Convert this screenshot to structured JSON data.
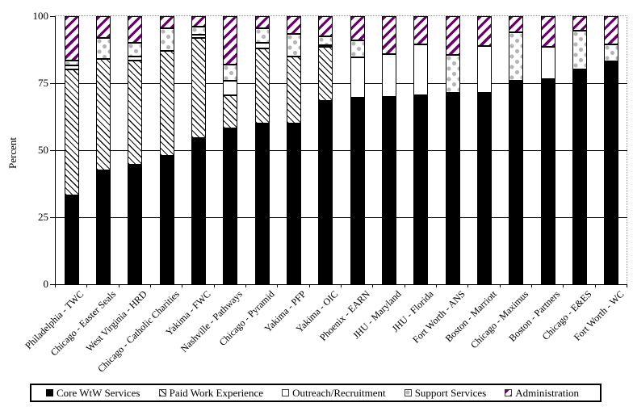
{
  "chart_data": {
    "type": "bar",
    "stacked": true,
    "title": "",
    "xlabel": "",
    "ylabel": "Percent",
    "ylim": [
      0,
      100
    ],
    "yticks": [
      0,
      25,
      50,
      75,
      100
    ],
    "grid": true,
    "legend_position": "bottom",
    "categories": [
      "Philadelphia - TWC",
      "Chicago - Easter Seals",
      "West Virginia - HRD",
      "Chicago - Catholic Charities",
      "Yakima - FWC",
      "Nashville - Pathways",
      "Chicago - Pyramid",
      "Yakima - PFP",
      "Yakima - OIC",
      "Phoenix - EARN",
      "JHU - Maryland",
      "JHU - Florida",
      "Fort Worth - ANS",
      "Boston - Marriott",
      "Chicago - Maximus",
      "Boston - Partners",
      "Chicago - E&ES",
      "Fort Worth - WC"
    ],
    "series": [
      {
        "name": "Core WtW Services",
        "key": "core",
        "pattern": "solid-black",
        "values": [
          33,
          42.5,
          44.5,
          48,
          54.5,
          58,
          60,
          60,
          68.5,
          69.5,
          70,
          70.5,
          71.5,
          71.5,
          76,
          76.5,
          80,
          83
        ]
      },
      {
        "name": "Paid Work Experience",
        "key": "pwe",
        "pattern": "black-diagonal-hatch",
        "values": [
          47,
          41.5,
          39,
          39,
          37.5,
          12.5,
          28,
          25,
          20,
          0,
          0,
          0,
          0,
          0,
          0,
          0,
          0,
          0
        ]
      },
      {
        "name": "Outreach/Recruitment",
        "key": "out",
        "pattern": "plain-white",
        "values": [
          1.5,
          0,
          1.5,
          0,
          1,
          5.5,
          2,
          0,
          0.5,
          15,
          16,
          19,
          0,
          17.5,
          0,
          12,
          0,
          0
        ]
      },
      {
        "name": "Support Services",
        "key": "sup",
        "pattern": "gray-diamond-dots",
        "values": [
          2,
          8,
          5,
          8.5,
          3,
          6,
          5.5,
          8.5,
          3.5,
          6.5,
          0,
          0,
          14,
          0,
          18,
          0,
          14.5,
          6.5
        ]
      },
      {
        "name": "Administration",
        "key": "adm",
        "pattern": "purple-diagonal-hatch",
        "values": [
          16.5,
          8,
          10,
          4.5,
          4,
          18,
          4.5,
          6.5,
          7.5,
          9,
          14,
          10.5,
          14.5,
          11,
          6,
          11.5,
          5.5,
          10.5
        ]
      }
    ],
    "colors": {
      "core": "#000000",
      "pwe_hatch": "#111111",
      "out": "#ffffff",
      "sup_dots": "#b5b5b5",
      "adm_hatch": "#690069"
    }
  }
}
